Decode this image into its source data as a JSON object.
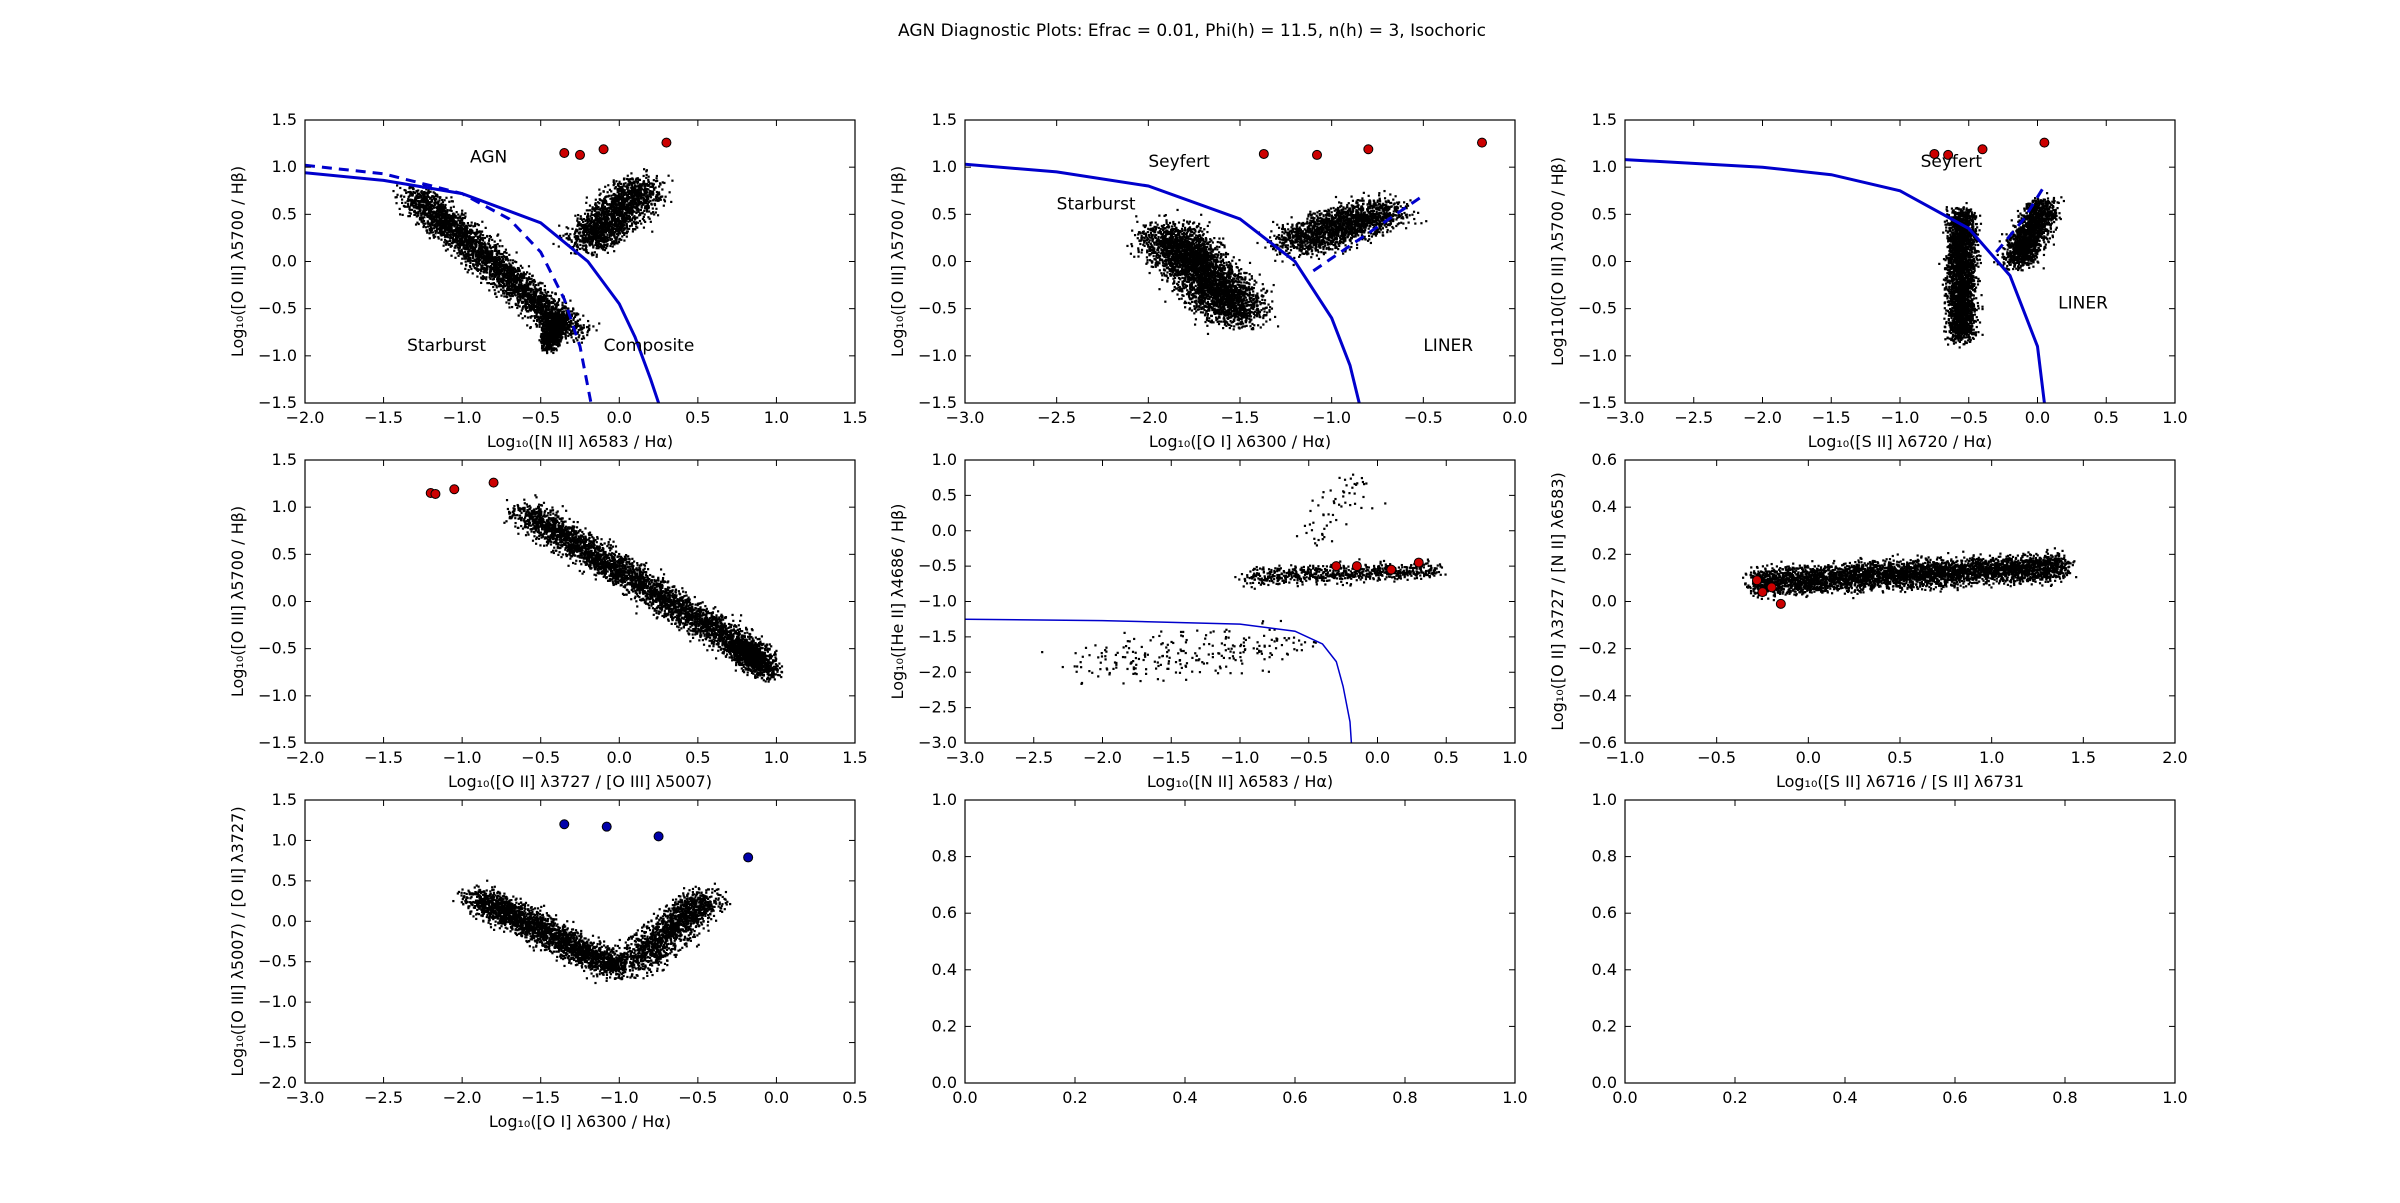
{
  "chart_data": {
    "title": "AGN Diagnostic Plots: Efrac = 0.01, Phi(h) = 11.5, n(h) = 3, Isochoric",
    "panels": [
      {
        "id": "bpt-nii",
        "type": "scatter",
        "xlabel": "Log₁₀([N II] λ6583 / Hα)",
        "ylabel": "Log₁₀([O III] λ5700 / Hβ)",
        "xlim": [
          -2.0,
          1.5
        ],
        "ylim": [
          -1.5,
          1.5
        ],
        "xticks": [
          "−2.0",
          "−1.5",
          "−1.0",
          "−0.5",
          "0.0",
          "0.5",
          "1.0",
          "1.5"
        ],
        "yticks": [
          "−1.5",
          "−1.0",
          "−0.5",
          "0.0",
          "0.5",
          "1.0",
          "1.5"
        ],
        "annotations": [
          {
            "text": "AGN",
            "x": -0.95,
            "y": 1.05
          },
          {
            "text": "Starburst",
            "x": -1.35,
            "y": -0.95
          },
          {
            "text": "Composite",
            "x": -0.1,
            "y": -0.95
          }
        ],
        "curves": [
          {
            "name": "Kewley",
            "style": "solid",
            "color": "#0000cc",
            "x": [
              -2.0,
              -1.5,
              -1.0,
              -0.5,
              -0.2,
              0.0,
              0.1,
              0.2,
              0.25
            ],
            "y": [
              0.94,
              0.86,
              0.72,
              0.41,
              0.0,
              -0.45,
              -0.8,
              -1.25,
              -1.5
            ]
          },
          {
            "name": "Kauffmann",
            "style": "dashed",
            "color": "#0000cc",
            "x": [
              -2.0,
              -1.5,
              -1.0,
              -0.7,
              -0.5,
              -0.35,
              -0.25,
              -0.18
            ],
            "y": [
              1.02,
              0.93,
              0.72,
              0.45,
              0.1,
              -0.4,
              -0.9,
              -1.5
            ]
          }
        ],
        "cloud": [
          {
            "x0": -1.3,
            "y0": 0.7,
            "x1": -0.3,
            "y1": -0.75,
            "spread": 0.13,
            "n": 3200
          },
          {
            "x0": -0.4,
            "y0": -0.6,
            "x1": -0.45,
            "y1": -0.9,
            "spread": 0.06,
            "n": 800
          },
          {
            "x0": -0.2,
            "y0": 0.2,
            "x1": 0.15,
            "y1": 0.8,
            "spread": 0.16,
            "n": 1800
          }
        ],
        "markers": {
          "color": "#cc0000",
          "x": [
            -0.35,
            -0.25,
            -0.1,
            0.3
          ],
          "y": [
            1.15,
            1.13,
            1.19,
            1.26
          ]
        }
      },
      {
        "id": "bpt-oi",
        "type": "scatter",
        "xlabel": "Log₁₀([O I] λ6300 / Hα)",
        "ylabel": "Log₁₀([O III] λ5700 / Hβ)",
        "xlim": [
          -3.0,
          0.0
        ],
        "ylim": [
          -1.5,
          1.5
        ],
        "xticks": [
          "−3.0",
          "−2.5",
          "−2.0",
          "−1.5",
          "−1.0",
          "−0.5",
          "0.0"
        ],
        "yticks": [
          "−1.5",
          "−1.0",
          "−0.5",
          "0.0",
          "0.5",
          "1.0",
          "1.5"
        ],
        "annotations": [
          {
            "text": "Seyfert",
            "x": -2.0,
            "y": 1.0
          },
          {
            "text": "Starburst",
            "x": -2.5,
            "y": 0.55
          },
          {
            "text": "LINER",
            "x": -0.5,
            "y": -0.95
          }
        ],
        "curves": [
          {
            "name": "Kewley",
            "style": "solid",
            "color": "#0000cc",
            "x": [
              -3.0,
              -2.5,
              -2.0,
              -1.5,
              -1.2,
              -1.0,
              -0.9,
              -0.85
            ],
            "y": [
              1.03,
              0.95,
              0.8,
              0.45,
              0.0,
              -0.6,
              -1.1,
              -1.5
            ]
          },
          {
            "name": "Seyfert-LINER",
            "style": "dashed",
            "color": "#0000cc",
            "x": [
              -1.1,
              -0.8,
              -0.5
            ],
            "y": [
              -0.1,
              0.3,
              0.7
            ]
          }
        ],
        "cloud": [
          {
            "x0": -1.9,
            "y0": 0.3,
            "x1": -1.5,
            "y1": -0.55,
            "spread": 0.18,
            "n": 3600
          },
          {
            "x0": -1.2,
            "y0": 0.2,
            "x1": -0.7,
            "y1": 0.55,
            "spread": 0.17,
            "n": 1800
          }
        ],
        "markers": {
          "color": "#cc0000",
          "x": [
            -1.37,
            -1.08,
            -0.8,
            -0.18
          ],
          "y": [
            1.14,
            1.13,
            1.19,
            1.26
          ]
        }
      },
      {
        "id": "bpt-sii",
        "type": "scatter",
        "xlabel": "Log₁₀([S II] λ6720 / Hα)",
        "ylabel": "Log110([O III] λ5700 / Hβ)",
        "xlim": [
          -3.0,
          1.0
        ],
        "ylim": [
          -1.5,
          1.5
        ],
        "xticks": [
          "−3.0",
          "−2.5",
          "−2.0",
          "−1.5",
          "−1.0",
          "−0.5",
          "0.0",
          "0.5",
          "1.0"
        ],
        "yticks": [
          "−1.5",
          "−1.0",
          "−0.5",
          "0.0",
          "0.5",
          "1.0",
          "1.5"
        ],
        "annotations": [
          {
            "text": "Seyfert",
            "x": -0.85,
            "y": 1.0
          },
          {
            "text": "LINER",
            "x": 0.15,
            "y": -0.5
          }
        ],
        "curves": [
          {
            "name": "Kewley",
            "style": "solid",
            "color": "#0000cc",
            "x": [
              -3.0,
              -2.0,
              -1.5,
              -1.0,
              -0.5,
              -0.2,
              0.0,
              0.05
            ],
            "y": [
              1.08,
              1.0,
              0.92,
              0.75,
              0.35,
              -0.15,
              -0.9,
              -1.5
            ]
          },
          {
            "name": "Seyfert-LINER",
            "style": "dashed",
            "color": "#0000cc",
            "x": [
              -0.3,
              -0.1,
              0.05
            ],
            "y": [
              0.1,
              0.45,
              0.8
            ]
          }
        ],
        "cloud": [
          {
            "x0": -0.55,
            "y0": 0.5,
            "x1": -0.55,
            "y1": -0.8,
            "spread": 0.1,
            "n": 2800
          },
          {
            "x0": -0.15,
            "y0": 0.0,
            "x1": 0.05,
            "y1": 0.6,
            "spread": 0.12,
            "n": 1500
          }
        ],
        "markers": {
          "color": "#cc0000",
          "x": [
            -0.75,
            -0.65,
            -0.4,
            0.05
          ],
          "y": [
            1.14,
            1.13,
            1.19,
            1.26
          ]
        }
      },
      {
        "id": "oii-oiii",
        "type": "scatter",
        "xlabel": "Log₁₀([O II] λ3727 / [O III] λ5007)",
        "ylabel": "Log₁₀([O III] λ5700 / Hβ)",
        "xlim": [
          -2.0,
          1.5
        ],
        "ylim": [
          -1.5,
          1.5
        ],
        "xticks": [
          "−2.0",
          "−1.5",
          "−1.0",
          "−0.5",
          "0.0",
          "0.5",
          "1.0",
          "1.5"
        ],
        "yticks": [
          "−1.5",
          "−1.0",
          "−0.5",
          "0.0",
          "0.5",
          "1.0",
          "1.5"
        ],
        "annotations": [],
        "curves": [],
        "cloud": [
          {
            "x0": -0.6,
            "y0": 0.95,
            "x1": 0.9,
            "y1": -0.6,
            "spread": 0.13,
            "n": 3600
          },
          {
            "x0": 0.75,
            "y0": -0.45,
            "x1": 0.95,
            "y1": -0.75,
            "spread": 0.1,
            "n": 800
          }
        ],
        "markers": {
          "color": "#cc0000",
          "x": [
            -1.2,
            -1.17,
            -1.05,
            -0.8
          ],
          "y": [
            1.15,
            1.14,
            1.19,
            1.26
          ]
        }
      },
      {
        "id": "heii",
        "type": "scatter",
        "xlabel": "Log₁₀([N II] λ6583 / Hα)",
        "ylabel": "Log₁₀([He II] λ4686 / Hβ)",
        "xlim": [
          -3.0,
          1.0
        ],
        "ylim": [
          -3.0,
          1.0
        ],
        "xticks": [
          "−3.0",
          "−2.5",
          "−2.0",
          "−1.5",
          "−1.0",
          "−0.5",
          "0.0",
          "0.5",
          "1.0"
        ],
        "yticks": [
          "−3.0",
          "−2.5",
          "−2.0",
          "−1.5",
          "−1.0",
          "−0.5",
          "0.0",
          "0.5",
          "1.0"
        ],
        "annotations": [],
        "curves": [
          {
            "name": "Boundary",
            "style": "solid",
            "color": "#0000cc",
            "x": [
              -3.0,
              -2.0,
              -1.0,
              -0.6,
              -0.4,
              -0.3,
              -0.25,
              -0.2,
              -0.19
            ],
            "y": [
              -1.25,
              -1.27,
              -1.32,
              -1.42,
              -1.6,
              -1.85,
              -2.2,
              -2.7,
              -3.0
            ]
          }
        ],
        "cloud": [
          {
            "x0": -0.9,
            "y0": -0.65,
            "x1": 0.4,
            "y1": -0.55,
            "spread": 0.12,
            "n": 700
          },
          {
            "x0": -2.1,
            "y0": -1.9,
            "x1": -0.6,
            "y1": -1.6,
            "spread": 0.3,
            "n": 240
          },
          {
            "x0": -0.5,
            "y0": -0.2,
            "x1": -0.1,
            "y1": 0.7,
            "spread": 0.2,
            "n": 60
          }
        ],
        "markers": {
          "color": "#cc0000",
          "x": [
            -0.3,
            -0.15,
            0.1,
            0.3
          ],
          "y": [
            -0.5,
            -0.5,
            -0.55,
            -0.45
          ]
        }
      },
      {
        "id": "oii-nii",
        "type": "scatter",
        "xlabel": "Log₁₀([S II] λ6716 / [S II] λ6731",
        "ylabel": "Log₁₀([O II] λ3727 / [N II] λ6583)",
        "xlim": [
          -1.0,
          2.0
        ],
        "ylim": [
          -0.6,
          0.6
        ],
        "xticks": [
          "−1.0",
          "−0.5",
          "0.0",
          "0.5",
          "1.0",
          "1.5",
          "2.0"
        ],
        "yticks": [
          "−0.6",
          "−0.4",
          "−0.2",
          "0.0",
          "0.2",
          "0.4",
          "0.6"
        ],
        "annotations": [],
        "curves": [],
        "cloud": [
          {
            "x0": -0.3,
            "y0": 0.08,
            "x1": 1.4,
            "y1": 0.15,
            "spread": 0.055,
            "n": 4200
          }
        ],
        "markers": {
          "color": "#cc0000",
          "x": [
            -0.28,
            -0.25,
            -0.2,
            -0.15
          ],
          "y": [
            0.09,
            0.04,
            0.06,
            -0.01
          ]
        }
      },
      {
        "id": "oiii-oii-vs-oi",
        "type": "scatter",
        "xlabel": "Log₁₀([O I] λ6300 / Hα)",
        "ylabel": "Log₁₀([O III] λ5007) / [O II] λ3727)",
        "xlim": [
          -3.0,
          0.5
        ],
        "ylim": [
          -2.0,
          1.5
        ],
        "xticks": [
          "−3.0",
          "−2.5",
          "−2.0",
          "−1.5",
          "−1.0",
          "−0.5",
          "0.0",
          "0.5"
        ],
        "yticks": [
          "−2.0",
          "−1.5",
          "−1.0",
          "−0.5",
          "0.0",
          "0.5",
          "1.0",
          "1.5"
        ],
        "annotations": [],
        "curves": [],
        "cloud": [
          {
            "x0": -1.9,
            "y0": 0.3,
            "x1": -1.0,
            "y1": -0.6,
            "spread": 0.14,
            "n": 2600
          },
          {
            "x0": -0.9,
            "y0": -0.5,
            "x1": -0.45,
            "y1": 0.3,
            "spread": 0.15,
            "n": 1500
          }
        ],
        "markers": {
          "color": "#0000aa",
          "x": [
            -1.35,
            -1.08,
            -0.75,
            -0.18
          ],
          "y": [
            1.2,
            1.17,
            1.05,
            0.79
          ]
        }
      },
      {
        "id": "empty-1",
        "type": "scatter",
        "xlabel": "",
        "ylabel": "",
        "xlim": [
          0.0,
          1.0
        ],
        "ylim": [
          0.0,
          1.0
        ],
        "xticks": [
          "0.0",
          "0.2",
          "0.4",
          "0.6",
          "0.8",
          "1.0"
        ],
        "yticks": [
          "0.0",
          "0.2",
          "0.4",
          "0.6",
          "0.8",
          "1.0"
        ],
        "annotations": [],
        "curves": [],
        "cloud": [],
        "markers": null
      },
      {
        "id": "empty-2",
        "type": "scatter",
        "xlabel": "",
        "ylabel": "",
        "xlim": [
          0.0,
          1.0
        ],
        "ylim": [
          0.0,
          1.0
        ],
        "xticks": [
          "0.0",
          "0.2",
          "0.4",
          "0.6",
          "0.8",
          "1.0"
        ],
        "yticks": [
          "0.0",
          "0.2",
          "0.4",
          "0.6",
          "0.8",
          "1.0"
        ],
        "annotations": [],
        "curves": [],
        "cloud": [],
        "markers": null
      }
    ]
  }
}
